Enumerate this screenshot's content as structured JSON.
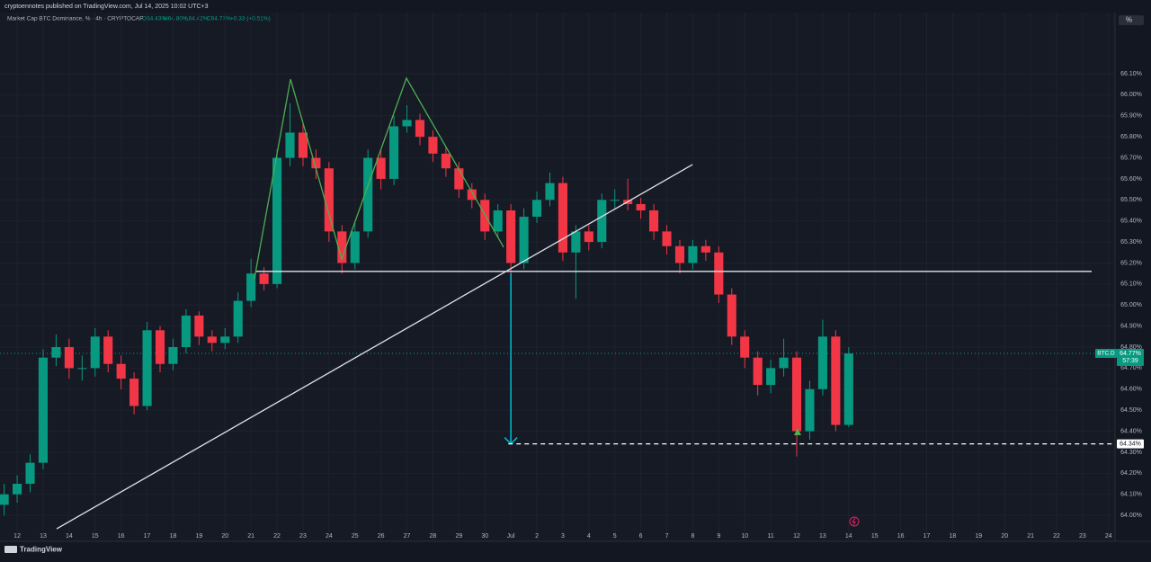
{
  "chart_data": {
    "type": "candlestick",
    "header": "cryptoennotes published on TradingView.com, Jul 14, 2025 10:02 UTC+3",
    "legend": {
      "name": "Market Cap BTC Dominance, % · 4h · CRYPTOCAP",
      "ohlc": [
        "O64.43%",
        "H64.80%",
        "L64.42%",
        "C64.77%"
      ],
      "change": "+0.33 (+0.51%)"
    },
    "scale_button": "%",
    "footer": "TradingView",
    "x": [
      11.5,
      12,
      12.5,
      13,
      13.5,
      14,
      14.5,
      15,
      15.5,
      16,
      16.5,
      17,
      17.5,
      18,
      18.5,
      19,
      19.5,
      20,
      20.5,
      21,
      21.5,
      22,
      22.5,
      23,
      23.5,
      24,
      24.5,
      25,
      25.5,
      26,
      26.5,
      27,
      27.5,
      28,
      28.5,
      29,
      29.5,
      30,
      30.5,
      31,
      31.5,
      32,
      32.5,
      33,
      33.5,
      34,
      34.5,
      35,
      35.5,
      36,
      36.5,
      37,
      37.5,
      38,
      38.5,
      39,
      39.5,
      40,
      40.5,
      41,
      41.5,
      42,
      42.5,
      43,
      43.5,
      44
    ],
    "open": [
      64.05,
      64.1,
      64.15,
      64.25,
      64.75,
      64.8,
      64.7,
      64.7,
      64.85,
      64.72,
      64.65,
      64.52,
      64.88,
      64.72,
      64.8,
      64.95,
      64.85,
      64.82,
      64.85,
      65.02,
      65.15,
      65.1,
      65.7,
      65.82,
      65.7,
      65.65,
      65.35,
      65.2,
      65.35,
      65.7,
      65.6,
      65.85,
      65.88,
      65.8,
      65.72,
      65.65,
      65.55,
      65.5,
      65.35,
      65.45,
      65.2,
      65.42,
      65.5,
      65.58,
      65.25,
      65.35,
      65.3,
      65.5,
      65.5,
      65.48,
      65.45,
      65.35,
      65.28,
      65.2,
      65.28,
      65.25,
      65.05,
      64.85,
      64.75,
      64.62,
      64.7,
      64.75,
      64.4,
      64.6,
      64.85,
      64.43
    ],
    "high": [
      64.15,
      64.19,
      64.29,
      64.79,
      64.86,
      64.84,
      64.76,
      64.89,
      64.88,
      64.76,
      64.68,
      64.92,
      64.9,
      64.84,
      64.98,
      64.97,
      64.88,
      64.89,
      65.06,
      65.22,
      65.18,
      65.74,
      65.96,
      65.86,
      65.74,
      65.68,
      65.38,
      65.4,
      65.74,
      65.74,
      65.9,
      65.95,
      65.91,
      65.83,
      65.75,
      65.68,
      65.58,
      65.53,
      65.48,
      65.48,
      65.46,
      65.54,
      65.63,
      65.61,
      65.38,
      65.38,
      65.53,
      65.55,
      65.6,
      65.51,
      65.48,
      65.38,
      65.31,
      65.31,
      65.31,
      65.28,
      65.08,
      64.88,
      64.78,
      64.74,
      64.84,
      64.78,
      64.64,
      64.93,
      64.88,
      64.8
    ],
    "low": [
      64.0,
      64.06,
      64.11,
      64.22,
      64.71,
      64.65,
      64.64,
      64.66,
      64.68,
      64.6,
      64.48,
      64.5,
      64.68,
      64.69,
      64.77,
      64.81,
      64.78,
      64.79,
      64.82,
      64.99,
      65.07,
      65.08,
      65.66,
      65.66,
      65.6,
      65.3,
      65.15,
      65.17,
      65.32,
      65.55,
      65.57,
      65.82,
      65.76,
      65.68,
      65.61,
      65.51,
      65.46,
      65.31,
      65.32,
      65.03,
      65.17,
      65.39,
      65.47,
      65.21,
      65.03,
      65.26,
      65.27,
      65.46,
      65.45,
      65.41,
      65.31,
      65.24,
      65.15,
      65.17,
      65.21,
      65.01,
      64.81,
      64.7,
      64.57,
      64.58,
      64.66,
      64.28,
      64.36,
      64.57,
      64.4,
      64.42
    ],
    "close": [
      64.1,
      64.15,
      64.25,
      64.75,
      64.8,
      64.7,
      64.7,
      64.85,
      64.72,
      64.65,
      64.52,
      64.88,
      64.72,
      64.8,
      64.95,
      64.85,
      64.82,
      64.85,
      65.02,
      65.15,
      65.1,
      65.7,
      65.82,
      65.7,
      65.65,
      65.35,
      65.2,
      65.35,
      65.7,
      65.6,
      65.85,
      65.88,
      65.8,
      65.72,
      65.65,
      65.55,
      65.5,
      65.35,
      65.45,
      65.2,
      65.42,
      65.5,
      65.58,
      65.25,
      65.35,
      65.3,
      65.5,
      65.5,
      65.48,
      65.45,
      65.35,
      65.28,
      65.2,
      65.28,
      65.25,
      65.05,
      64.85,
      64.75,
      64.62,
      64.7,
      64.75,
      64.4,
      64.6,
      64.85,
      64.43,
      64.77
    ],
    "up_color": "#089981",
    "down_color": "#f23645",
    "xlim": [
      11.34,
      54.18
    ],
    "xticks": [
      {
        "value": 12,
        "label": "12"
      },
      {
        "value": 13,
        "label": "13"
      },
      {
        "value": 14,
        "label": "14"
      },
      {
        "value": 15,
        "label": "15"
      },
      {
        "value": 16,
        "label": "16"
      },
      {
        "value": 17,
        "label": "17"
      },
      {
        "value": 18,
        "label": "18"
      },
      {
        "value": 19,
        "label": "19"
      },
      {
        "value": 20,
        "label": "20"
      },
      {
        "value": 21,
        "label": "21"
      },
      {
        "value": 22,
        "label": "22"
      },
      {
        "value": 23,
        "label": "23"
      },
      {
        "value": 24,
        "label": "24"
      },
      {
        "value": 25,
        "label": "25"
      },
      {
        "value": 26,
        "label": "26"
      },
      {
        "value": 27,
        "label": "27"
      },
      {
        "value": 28,
        "label": "28"
      },
      {
        "value": 29,
        "label": "29"
      },
      {
        "value": 30,
        "label": "30"
      },
      {
        "value": 31,
        "label": "Jul"
      },
      {
        "value": 32,
        "label": "2"
      },
      {
        "value": 33,
        "label": "3"
      },
      {
        "value": 34,
        "label": "4"
      },
      {
        "value": 35,
        "label": "5"
      },
      {
        "value": 36,
        "label": "6"
      },
      {
        "value": 37,
        "label": "7"
      },
      {
        "value": 38,
        "label": "8"
      },
      {
        "value": 39,
        "label": "9"
      },
      {
        "value": 40,
        "label": "10"
      },
      {
        "value": 41,
        "label": "11"
      },
      {
        "value": 42,
        "label": "12"
      },
      {
        "value": 43,
        "label": "13"
      },
      {
        "value": 44,
        "label": "14"
      },
      {
        "value": 45,
        "label": "15"
      },
      {
        "value": 46,
        "label": "16"
      },
      {
        "value": 47,
        "label": "17"
      },
      {
        "value": 48,
        "label": "18"
      },
      {
        "value": 49,
        "label": "19"
      },
      {
        "value": 50,
        "label": "20"
      },
      {
        "value": 51,
        "label": "21"
      },
      {
        "value": 52,
        "label": "22"
      },
      {
        "value": 53,
        "label": "23"
      },
      {
        "value": 54,
        "label": "24"
      }
    ],
    "ylim": [
      63.885,
      66.365
    ],
    "yticks": [
      {
        "value": 64.0,
        "label": "64.00%"
      },
      {
        "value": 64.1,
        "label": "64.10%"
      },
      {
        "value": 64.2,
        "label": "64.20%"
      },
      {
        "value": 64.3,
        "label": "64.30%"
      },
      {
        "value": 64.4,
        "label": "64.40%"
      },
      {
        "value": 64.5,
        "label": "64.50%"
      },
      {
        "value": 64.6,
        "label": "64.60%"
      },
      {
        "value": 64.7,
        "label": "64.70%"
      },
      {
        "value": 64.8,
        "label": "64.80%"
      },
      {
        "value": 64.9,
        "label": "64.90%"
      },
      {
        "value": 65.0,
        "label": "65.00%"
      },
      {
        "value": 65.1,
        "label": "65.10%"
      },
      {
        "value": 65.2,
        "label": "65.20%"
      },
      {
        "value": 65.3,
        "label": "65.30%"
      },
      {
        "value": 65.4,
        "label": "65.40%"
      },
      {
        "value": 65.5,
        "label": "65.50%"
      },
      {
        "value": 65.6,
        "label": "65.60%"
      },
      {
        "value": 65.7,
        "label": "65.70%"
      },
      {
        "value": 65.8,
        "label": "65.80%"
      },
      {
        "value": 65.9,
        "label": "65.90%"
      },
      {
        "value": 66.0,
        "label": "66.00%"
      },
      {
        "value": 66.1,
        "label": "66.10%"
      }
    ],
    "grid": true,
    "horizontal_line": {
      "value": 65.16,
      "x": [
        21.2,
        53.35
      ]
    },
    "trend_line": {
      "x": [
        13.52,
        37.99
      ],
      "y": [
        63.936,
        65.668
      ]
    },
    "pattern": {
      "x": [
        21.13,
        22.52,
        24.49,
        26.98,
        30.72
      ],
      "y": [
        65.125,
        66.074,
        65.219,
        66.079,
        65.275
      ]
    },
    "target_arrow": {
      "x": 31.0,
      "from": 65.15,
      "to": 64.34
    },
    "target_line": {
      "value": 64.34,
      "label": "64.34%",
      "x_start": 30.9
    },
    "last_price": {
      "symbol": "BTC.D",
      "value": 64.77,
      "label": "64.77%",
      "countdown": "57:39"
    }
  }
}
